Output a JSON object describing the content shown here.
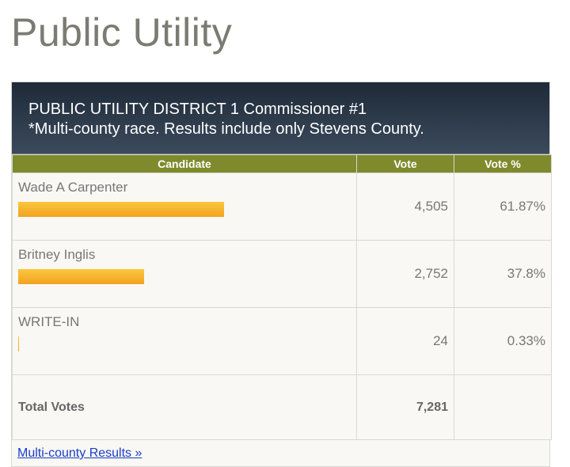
{
  "header": {
    "title": "Public Utility"
  },
  "race": {
    "title": "PUBLIC UTILITY DISTRICT 1 Commissioner #1",
    "note": "*Multi-county race. Results include only Stevens County."
  },
  "table": {
    "columns": [
      "Candidate",
      "Vote",
      "Vote %"
    ],
    "rows": [
      {
        "candidate": "Wade A Carpenter",
        "votes": {
          "value": 4505,
          "label": "4,505"
        },
        "percent": {
          "value": 61.87,
          "label": "61.87%"
        }
      },
      {
        "candidate": "Britney Inglis",
        "votes": {
          "value": 2752,
          "label": "2,752"
        },
        "percent": {
          "value": 37.8,
          "label": "37.8%"
        }
      },
      {
        "candidate": "WRITE-IN",
        "votes": {
          "value": 24,
          "label": "24"
        },
        "percent": {
          "value": 0.33,
          "label": "0.33%"
        }
      }
    ],
    "total": {
      "label": "Total Votes",
      "votes": {
        "value": 7281,
        "label": "7,281"
      }
    }
  },
  "link": "Multi-county Results »"
}
